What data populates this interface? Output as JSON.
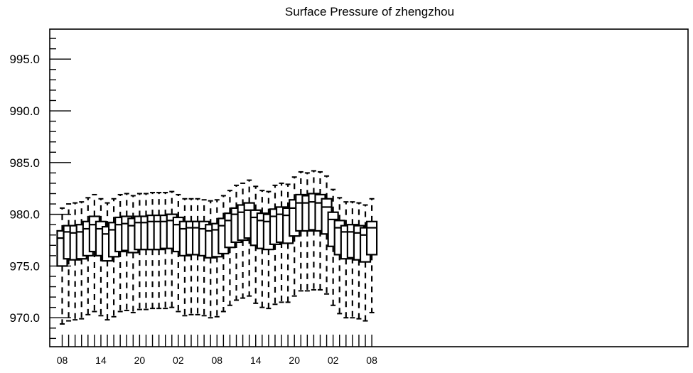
{
  "chart_data": {
    "type": "box",
    "title": "Surface Pressure of zhengzhou",
    "xlabel": "",
    "ylabel": "",
    "ylim": [
      967.2,
      997.9
    ],
    "y_ticks": [
      970.0,
      975.0,
      980.0,
      985.0,
      990.0,
      995.0
    ],
    "y_tick_labels": [
      "970.0",
      "975.0",
      "980.0",
      "985.0",
      "990.0",
      "995.0"
    ],
    "x_tick_labels": [
      "08",
      "14",
      "20",
      "02",
      "08",
      "14",
      "20",
      "02",
      "08"
    ],
    "x_tick_positions": [
      0,
      6,
      12,
      18,
      24,
      30,
      36,
      42,
      48
    ],
    "grid": false,
    "legend": "none",
    "boxes": [
      {
        "x": 0,
        "min": 969.4,
        "q1": 975.0,
        "median": 977.7,
        "q3": 978.4,
        "max": 980.6
      },
      {
        "x": 1,
        "min": 969.7,
        "q1": 975.7,
        "median": 978.3,
        "q3": 978.9,
        "max": 981.0
      },
      {
        "x": 2,
        "min": 969.8,
        "q1": 975.6,
        "median": 978.2,
        "q3": 978.9,
        "max": 981.1
      },
      {
        "x": 3,
        "min": 969.9,
        "q1": 975.7,
        "median": 978.3,
        "q3": 979.0,
        "max": 981.2
      },
      {
        "x": 4,
        "min": 970.3,
        "q1": 976.0,
        "median": 978.6,
        "q3": 979.3,
        "max": 981.6
      },
      {
        "x": 5,
        "min": 970.6,
        "q1": 976.4,
        "median": 979.0,
        "q3": 979.8,
        "max": 981.9
      },
      {
        "x": 6,
        "min": 970.2,
        "q1": 976.0,
        "median": 978.6,
        "q3": 979.3,
        "max": 981.5
      },
      {
        "x": 7,
        "min": 969.8,
        "q1": 975.5,
        "median": 978.1,
        "q3": 978.8,
        "max": 981.1
      },
      {
        "x": 8,
        "min": 970.1,
        "q1": 975.9,
        "median": 978.5,
        "q3": 979.2,
        "max": 981.5
      },
      {
        "x": 9,
        "min": 970.6,
        "q1": 976.4,
        "median": 979.0,
        "q3": 979.7,
        "max": 981.9
      },
      {
        "x": 10,
        "min": 970.7,
        "q1": 976.5,
        "median": 979.1,
        "q3": 979.8,
        "max": 982.0
      },
      {
        "x": 11,
        "min": 970.5,
        "q1": 976.3,
        "median": 978.9,
        "q3": 979.6,
        "max": 981.8
      },
      {
        "x": 12,
        "min": 970.8,
        "q1": 976.6,
        "median": 979.2,
        "q3": 979.8,
        "max": 982.0
      },
      {
        "x": 13,
        "min": 970.8,
        "q1": 976.6,
        "median": 979.2,
        "q3": 979.8,
        "max": 982.0
      },
      {
        "x": 14,
        "min": 970.9,
        "q1": 976.6,
        "median": 979.3,
        "q3": 979.9,
        "max": 982.1
      },
      {
        "x": 15,
        "min": 970.9,
        "q1": 976.6,
        "median": 979.3,
        "q3": 979.9,
        "max": 982.1
      },
      {
        "x": 16,
        "min": 970.9,
        "q1": 976.7,
        "median": 979.3,
        "q3": 979.9,
        "max": 982.1
      },
      {
        "x": 17,
        "min": 971.0,
        "q1": 976.7,
        "median": 979.4,
        "q3": 980.0,
        "max": 982.2
      },
      {
        "x": 18,
        "min": 970.6,
        "q1": 976.4,
        "median": 979.0,
        "q3": 979.7,
        "max": 981.9
      },
      {
        "x": 19,
        "min": 970.2,
        "q1": 976.0,
        "median": 978.6,
        "q3": 979.3,
        "max": 981.5
      },
      {
        "x": 20,
        "min": 970.3,
        "q1": 976.1,
        "median": 978.7,
        "q3": 979.3,
        "max": 981.5
      },
      {
        "x": 21,
        "min": 970.3,
        "q1": 976.1,
        "median": 978.7,
        "q3": 979.3,
        "max": 981.5
      },
      {
        "x": 22,
        "min": 970.2,
        "q1": 976.0,
        "median": 978.6,
        "q3": 979.3,
        "max": 981.4
      },
      {
        "x": 23,
        "min": 970.0,
        "q1": 975.8,
        "median": 978.4,
        "q3": 979.0,
        "max": 981.3
      },
      {
        "x": 24,
        "min": 970.1,
        "q1": 975.9,
        "median": 978.5,
        "q3": 979.1,
        "max": 981.4
      },
      {
        "x": 25,
        "min": 970.6,
        "q1": 976.2,
        "median": 978.9,
        "q3": 979.6,
        "max": 981.8
      },
      {
        "x": 26,
        "min": 971.2,
        "q1": 976.8,
        "median": 979.4,
        "q3": 980.1,
        "max": 982.3
      },
      {
        "x": 27,
        "min": 971.7,
        "q1": 977.3,
        "median": 980.0,
        "q3": 980.6,
        "max": 982.8
      },
      {
        "x": 28,
        "min": 971.9,
        "q1": 977.5,
        "median": 980.2,
        "q3": 980.9,
        "max": 983.0
      },
      {
        "x": 29,
        "min": 972.1,
        "q1": 977.7,
        "median": 980.4,
        "q3": 981.1,
        "max": 983.3
      },
      {
        "x": 30,
        "min": 971.4,
        "q1": 977.0,
        "median": 979.7,
        "q3": 980.4,
        "max": 982.7
      },
      {
        "x": 31,
        "min": 971.0,
        "q1": 976.7,
        "median": 979.4,
        "q3": 980.1,
        "max": 982.3
      },
      {
        "x": 32,
        "min": 970.9,
        "q1": 976.6,
        "median": 979.3,
        "q3": 980.0,
        "max": 982.2
      },
      {
        "x": 33,
        "min": 971.3,
        "q1": 977.1,
        "median": 979.8,
        "q3": 980.5,
        "max": 982.8
      },
      {
        "x": 34,
        "min": 971.5,
        "q1": 977.3,
        "median": 980.0,
        "q3": 980.7,
        "max": 983.0
      },
      {
        "x": 35,
        "min": 971.5,
        "q1": 977.2,
        "median": 979.9,
        "q3": 980.6,
        "max": 982.9
      },
      {
        "x": 36,
        "min": 972.1,
        "q1": 977.9,
        "median": 980.6,
        "q3": 981.4,
        "max": 983.6
      },
      {
        "x": 37,
        "min": 972.6,
        "q1": 978.4,
        "median": 981.1,
        "q3": 981.9,
        "max": 984.1
      },
      {
        "x": 38,
        "min": 972.6,
        "q1": 978.4,
        "median": 981.1,
        "q3": 981.8,
        "max": 984.0
      },
      {
        "x": 39,
        "min": 972.7,
        "q1": 978.5,
        "median": 981.2,
        "q3": 982.0,
        "max": 984.2
      },
      {
        "x": 40,
        "min": 972.7,
        "q1": 978.4,
        "median": 981.1,
        "q3": 981.9,
        "max": 984.1
      },
      {
        "x": 41,
        "min": 972.3,
        "q1": 978.1,
        "median": 980.7,
        "q3": 981.5,
        "max": 983.7
      },
      {
        "x": 42,
        "min": 971.2,
        "q1": 976.9,
        "median": 979.5,
        "q3": 980.2,
        "max": 982.4
      },
      {
        "x": 43,
        "min": 970.4,
        "q1": 976.1,
        "median": 978.7,
        "q3": 979.4,
        "max": 981.6
      },
      {
        "x": 44,
        "min": 970.0,
        "q1": 975.7,
        "median": 978.3,
        "q3": 978.9,
        "max": 981.2
      },
      {
        "x": 45,
        "min": 970.0,
        "q1": 975.8,
        "median": 978.3,
        "q3": 979.0,
        "max": 981.2
      },
      {
        "x": 46,
        "min": 969.9,
        "q1": 975.6,
        "median": 978.2,
        "q3": 978.9,
        "max": 981.1
      },
      {
        "x": 47,
        "min": 969.7,
        "q1": 975.4,
        "median": 978.0,
        "q3": 978.7,
        "max": 980.9
      },
      {
        "x": 48,
        "min": 970.5,
        "q1": 976.1,
        "median": 978.7,
        "q3": 979.3,
        "max": 981.5
      }
    ]
  }
}
